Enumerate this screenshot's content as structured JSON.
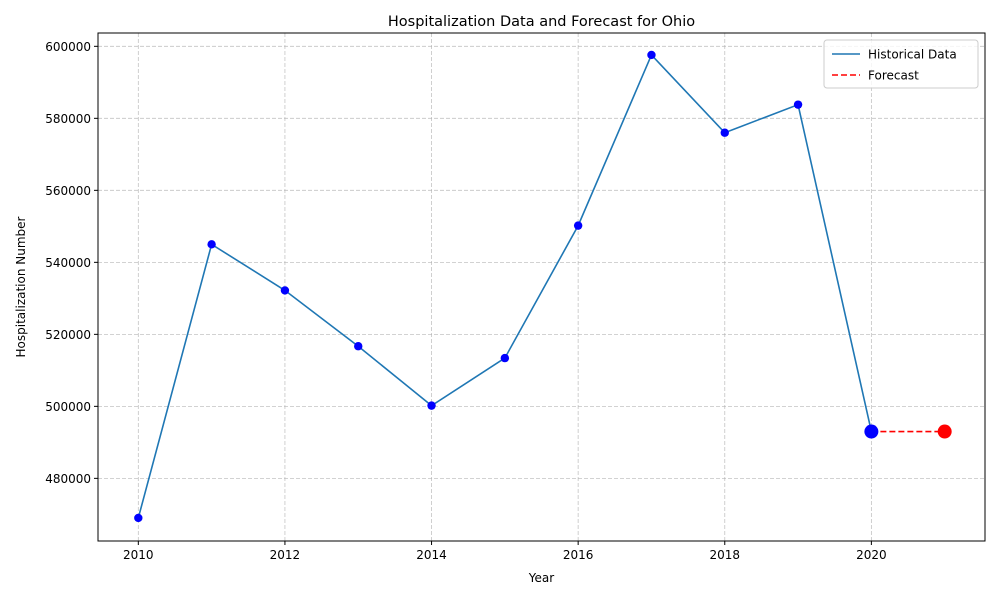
{
  "chart_data": {
    "type": "line",
    "title": "Hospitalization Data and Forecast for Ohio",
    "xlabel": "Year",
    "ylabel": "Hospitalization Number",
    "xlim": [
      2009.45,
      2021.55
    ],
    "ylim": [
      462600,
      603700
    ],
    "xticks": [
      2010,
      2012,
      2014,
      2016,
      2018,
      2020
    ],
    "yticks": [
      480000,
      500000,
      520000,
      540000,
      560000,
      580000,
      600000
    ],
    "grid": true,
    "legend_position": "top-right",
    "series": [
      {
        "name": "Historical Data",
        "style": "solid",
        "color": "#1f77b4",
        "marker_color": "#0000ff",
        "x": [
          2010,
          2011,
          2012,
          2013,
          2014,
          2015,
          2016,
          2017,
          2018,
          2019,
          2020
        ],
        "values": [
          469000,
          545000,
          532200,
          516700,
          500200,
          513400,
          550200,
          597600,
          576000,
          583800,
          493000
        ]
      },
      {
        "name": "Forecast",
        "style": "dashed",
        "color": "#ff0000",
        "marker_color": "#ff0000",
        "x": [
          2020,
          2021
        ],
        "values": [
          493000,
          493000
        ]
      }
    ],
    "highlight_points": [
      {
        "x": 2020,
        "y": 493000,
        "color": "#0000ff"
      },
      {
        "x": 2021,
        "y": 493000,
        "color": "#ff0000"
      }
    ]
  }
}
